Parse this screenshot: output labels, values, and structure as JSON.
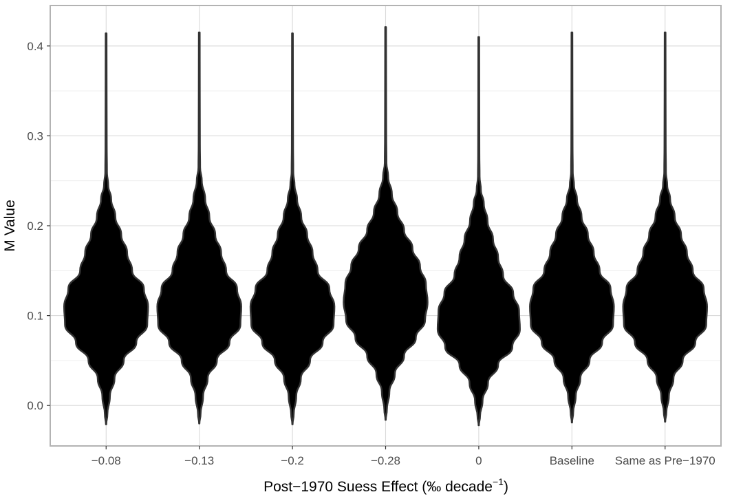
{
  "chart_data": {
    "type": "violin",
    "title": "",
    "xlabel": "Post−1970 Suess Effect (‰ decade",
    "xlabel_superscript": "−1",
    "xlabel_suffix": ")",
    "ylabel": "M  Value",
    "categories": [
      "−0.08",
      "−0.13",
      "−0.2",
      "−0.28",
      "0",
      "Baseline",
      "Same as Pre−1970"
    ],
    "ylim": [
      -0.045,
      0.445
    ],
    "yticks": [
      0.0,
      0.1,
      0.2,
      0.3,
      0.4
    ],
    "ytick_labels": [
      "0.0",
      "0.1",
      "0.2",
      "0.3",
      "0.4"
    ],
    "grid": true,
    "fill_color": "#000000",
    "outline_color": "#333333",
    "series": [
      {
        "category": "−0.08",
        "min": -0.021,
        "max": 0.414,
        "density_profile": [
          [
            -0.021,
            0.004
          ],
          [
            -0.01,
            0.03
          ],
          [
            0.01,
            0.09
          ],
          [
            0.03,
            0.2
          ],
          [
            0.05,
            0.42
          ],
          [
            0.07,
            0.72
          ],
          [
            0.09,
            0.98
          ],
          [
            0.11,
            1.0
          ],
          [
            0.13,
            0.9
          ],
          [
            0.15,
            0.62
          ],
          [
            0.17,
            0.5
          ],
          [
            0.19,
            0.36
          ],
          [
            0.21,
            0.22
          ],
          [
            0.23,
            0.12
          ],
          [
            0.245,
            0.05
          ],
          [
            0.26,
            0.02
          ],
          [
            0.29,
            0.015
          ],
          [
            0.35,
            0.012
          ],
          [
            0.414,
            0.01
          ]
        ]
      },
      {
        "category": "−0.13",
        "min": -0.02,
        "max": 0.415,
        "density_profile": [
          [
            -0.02,
            0.004
          ],
          [
            -0.01,
            0.03
          ],
          [
            0.01,
            0.09
          ],
          [
            0.03,
            0.2
          ],
          [
            0.05,
            0.42
          ],
          [
            0.07,
            0.72
          ],
          [
            0.09,
            0.98
          ],
          [
            0.11,
            1.0
          ],
          [
            0.13,
            0.9
          ],
          [
            0.15,
            0.64
          ],
          [
            0.17,
            0.52
          ],
          [
            0.19,
            0.38
          ],
          [
            0.21,
            0.24
          ],
          [
            0.23,
            0.14
          ],
          [
            0.25,
            0.06
          ],
          [
            0.265,
            0.02
          ],
          [
            0.29,
            0.015
          ],
          [
            0.35,
            0.012
          ],
          [
            0.415,
            0.01
          ]
        ]
      },
      {
        "category": "−0.2",
        "min": -0.021,
        "max": 0.414,
        "density_profile": [
          [
            -0.021,
            0.004
          ],
          [
            -0.01,
            0.03
          ],
          [
            0.01,
            0.09
          ],
          [
            0.03,
            0.2
          ],
          [
            0.05,
            0.42
          ],
          [
            0.07,
            0.72
          ],
          [
            0.09,
            0.98
          ],
          [
            0.11,
            1.0
          ],
          [
            0.13,
            0.88
          ],
          [
            0.15,
            0.6
          ],
          [
            0.17,
            0.48
          ],
          [
            0.19,
            0.35
          ],
          [
            0.21,
            0.21
          ],
          [
            0.23,
            0.11
          ],
          [
            0.245,
            0.05
          ],
          [
            0.26,
            0.02
          ],
          [
            0.29,
            0.015
          ],
          [
            0.35,
            0.012
          ],
          [
            0.414,
            0.01
          ]
        ]
      },
      {
        "category": "−0.28",
        "min": -0.016,
        "max": 0.421,
        "density_profile": [
          [
            -0.016,
            0.004
          ],
          [
            -0.005,
            0.03
          ],
          [
            0.015,
            0.09
          ],
          [
            0.035,
            0.22
          ],
          [
            0.055,
            0.44
          ],
          [
            0.075,
            0.72
          ],
          [
            0.095,
            0.94
          ],
          [
            0.115,
            1.0
          ],
          [
            0.135,
            0.96
          ],
          [
            0.155,
            0.82
          ],
          [
            0.175,
            0.64
          ],
          [
            0.195,
            0.44
          ],
          [
            0.215,
            0.28
          ],
          [
            0.235,
            0.15
          ],
          [
            0.255,
            0.06
          ],
          [
            0.27,
            0.02
          ],
          [
            0.3,
            0.015
          ],
          [
            0.36,
            0.012
          ],
          [
            0.421,
            0.01
          ]
        ]
      },
      {
        "category": "0",
        "min": -0.022,
        "max": 0.41,
        "density_profile": [
          [
            -0.022,
            0.004
          ],
          [
            -0.012,
            0.03
          ],
          [
            0.005,
            0.09
          ],
          [
            0.025,
            0.22
          ],
          [
            0.045,
            0.46
          ],
          [
            0.065,
            0.8
          ],
          [
            0.085,
            0.98
          ],
          [
            0.105,
            0.96
          ],
          [
            0.125,
            0.82
          ],
          [
            0.145,
            0.58
          ],
          [
            0.165,
            0.46
          ],
          [
            0.185,
            0.34
          ],
          [
            0.205,
            0.21
          ],
          [
            0.225,
            0.12
          ],
          [
            0.24,
            0.05
          ],
          [
            0.255,
            0.02
          ],
          [
            0.28,
            0.015
          ],
          [
            0.34,
            0.012
          ],
          [
            0.41,
            0.01
          ]
        ]
      },
      {
        "category": "Baseline",
        "min": -0.019,
        "max": 0.415,
        "density_profile": [
          [
            -0.019,
            0.004
          ],
          [
            -0.008,
            0.03
          ],
          [
            0.01,
            0.09
          ],
          [
            0.03,
            0.2
          ],
          [
            0.05,
            0.42
          ],
          [
            0.07,
            0.72
          ],
          [
            0.09,
            0.98
          ],
          [
            0.11,
            1.0
          ],
          [
            0.13,
            0.92
          ],
          [
            0.15,
            0.66
          ],
          [
            0.17,
            0.52
          ],
          [
            0.19,
            0.38
          ],
          [
            0.21,
            0.23
          ],
          [
            0.23,
            0.12
          ],
          [
            0.245,
            0.05
          ],
          [
            0.26,
            0.02
          ],
          [
            0.29,
            0.015
          ],
          [
            0.35,
            0.012
          ],
          [
            0.415,
            0.01
          ]
        ]
      },
      {
        "category": "Same as Pre−1970",
        "min": -0.018,
        "max": 0.415,
        "density_profile": [
          [
            -0.018,
            0.004
          ],
          [
            -0.008,
            0.03
          ],
          [
            0.01,
            0.09
          ],
          [
            0.03,
            0.2
          ],
          [
            0.05,
            0.42
          ],
          [
            0.07,
            0.72
          ],
          [
            0.09,
            0.98
          ],
          [
            0.11,
            1.0
          ],
          [
            0.13,
            0.92
          ],
          [
            0.15,
            0.66
          ],
          [
            0.17,
            0.52
          ],
          [
            0.19,
            0.38
          ],
          [
            0.21,
            0.23
          ],
          [
            0.23,
            0.12
          ],
          [
            0.245,
            0.05
          ],
          [
            0.26,
            0.02
          ],
          [
            0.29,
            0.015
          ],
          [
            0.35,
            0.012
          ],
          [
            0.415,
            0.01
          ]
        ]
      }
    ]
  }
}
